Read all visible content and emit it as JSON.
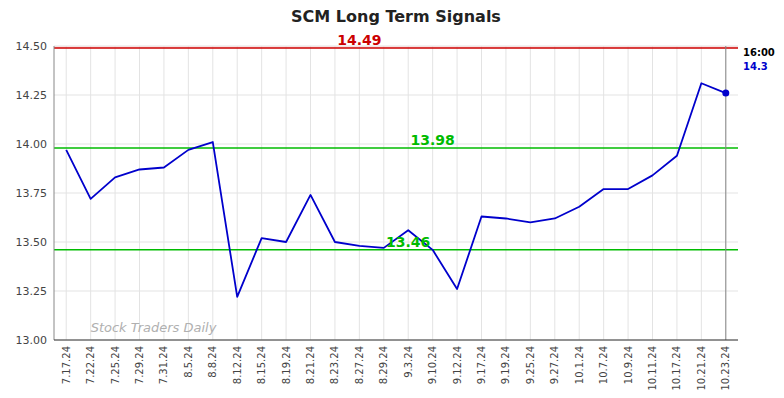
{
  "chart_data": {
    "type": "line",
    "title": "SCM Long Term Signals",
    "categories": [
      "7.17.24",
      "7.22.24",
      "7.25.24",
      "7.29.24",
      "7.31.24",
      "8.5.24",
      "8.8.24",
      "8.12.24",
      "8.15.24",
      "8.19.24",
      "8.21.24",
      "8.23.24",
      "8.27.24",
      "8.29.24",
      "9.3.24",
      "9.10.24",
      "9.12.24",
      "9.17.24",
      "9.19.24",
      "9.25.24",
      "9.27.24",
      "10.1.24",
      "10.7.24",
      "10.9.24",
      "10.11.24",
      "10.17.24",
      "10.21.24",
      "10.23.24"
    ],
    "values": [
      13.97,
      13.72,
      13.83,
      13.87,
      13.88,
      13.97,
      14.01,
      13.22,
      13.52,
      13.5,
      13.74,
      13.5,
      13.48,
      13.47,
      13.56,
      13.46,
      13.26,
      13.63,
      13.62,
      13.6,
      13.62,
      13.68,
      13.77,
      13.77,
      13.84,
      13.94,
      14.31,
      14.26
    ],
    "color": "#0000cc",
    "ylim": [
      13.0,
      14.5
    ],
    "yticks": [
      {
        "value": 13.0,
        "label": "13.00"
      },
      13.25,
      {
        "value": 13.5,
        "label": "13.50"
      },
      13.75,
      {
        "value": 14.0,
        "label": "14.00"
      },
      14.25,
      {
        "value": 14.5,
        "label": "14.50"
      }
    ],
    "grid": true,
    "lines": [
      {
        "value": 14.49,
        "label": "14.49",
        "color": "#cc0000"
      },
      {
        "value": 13.98,
        "label": "13.98",
        "color": "#00bb00"
      },
      {
        "value": 13.46,
        "label": "13.46",
        "color": "#00bb00"
      }
    ],
    "bands": [
      {
        "from": 14.49,
        "to": 14.5,
        "color": "#ffcccc"
      }
    ],
    "annotations": [
      {
        "text": "16:00"
      },
      {
        "text": "14.3",
        "color": "#0000cc"
      }
    ],
    "watermark": {
      "text": "Stock Traders Daily",
      "color": "#b0b0b0"
    }
  }
}
